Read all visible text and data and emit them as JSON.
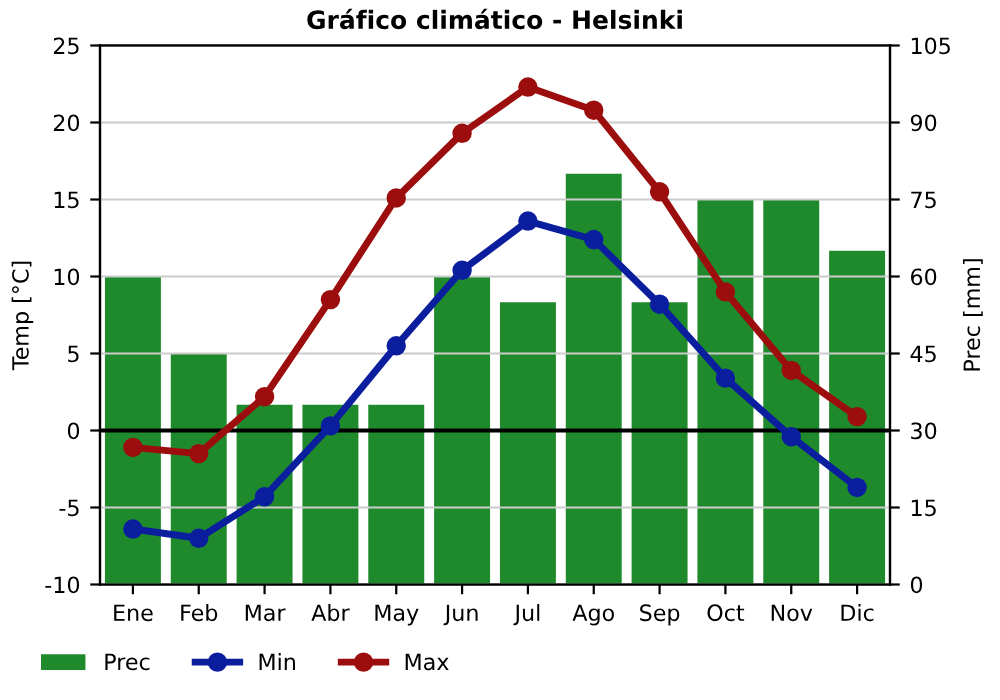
{
  "chart_data": {
    "type": "line",
    "title": "Gráfico climático - Helsinki",
    "ylabel": "Temp [°C]",
    "y2label": "Prec [mm]",
    "categories": [
      "Ene",
      "Feb",
      "Mar",
      "Abr",
      "May",
      "Jun",
      "Jul",
      "Ago",
      "Sep",
      "Oct",
      "Nov",
      "Dic"
    ],
    "series": [
      {
        "name": "Prec",
        "type": "bar",
        "axis": "y2",
        "color": "#1f8a2c",
        "values": [
          60,
          45,
          35,
          35,
          35,
          60,
          55,
          80,
          55,
          75,
          75,
          65
        ]
      },
      {
        "name": "Min",
        "color": "#0a1e9e",
        "values": [
          -6.4,
          -7.0,
          -4.3,
          0.3,
          5.5,
          10.4,
          13.6,
          12.4,
          8.2,
          3.4,
          -0.4,
          -3.7
        ]
      },
      {
        "name": "Max",
        "color": "#9c0e0e",
        "values": [
          -1.1,
          -1.5,
          2.2,
          8.5,
          15.1,
          19.3,
          22.3,
          20.8,
          15.5,
          9.0,
          3.9,
          0.9
        ]
      }
    ],
    "ylim": [
      -10,
      25
    ],
    "yticks": [
      -10,
      -5,
      0,
      5,
      10,
      15,
      20,
      25
    ],
    "y2lim": [
      0,
      105
    ],
    "y2ticks": [
      0,
      15,
      30,
      45,
      60,
      75,
      90,
      105
    ],
    "ref_lines": [
      {
        "axis": "y",
        "value": 0,
        "color": "#000000"
      }
    ],
    "grid": "y",
    "legend": "bottom",
    "marker": "circle",
    "line_style": "solid"
  }
}
